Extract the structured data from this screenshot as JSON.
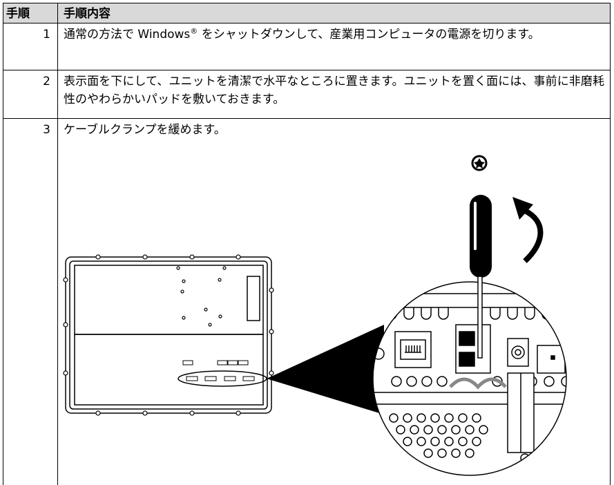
{
  "table": {
    "header": [
      "手順",
      "手順内容"
    ],
    "rows": [
      {
        "step": "1",
        "content": [
          "通常の方法で Windows",
          "®",
          " をシャットダウンして、産業用コンピュータの電源を切ります。"
        ]
      },
      {
        "step": "2",
        "content": [
          "表示面を下にして、ユニットを清潔で水平なところに置きます。ユニットを置く面には、事前に非磨耗性のやわらかいパッドを敷いておきます。"
        ]
      },
      {
        "step": "3",
        "content": [
          "ケーブルクランプを緩めます。"
        ]
      }
    ]
  }
}
